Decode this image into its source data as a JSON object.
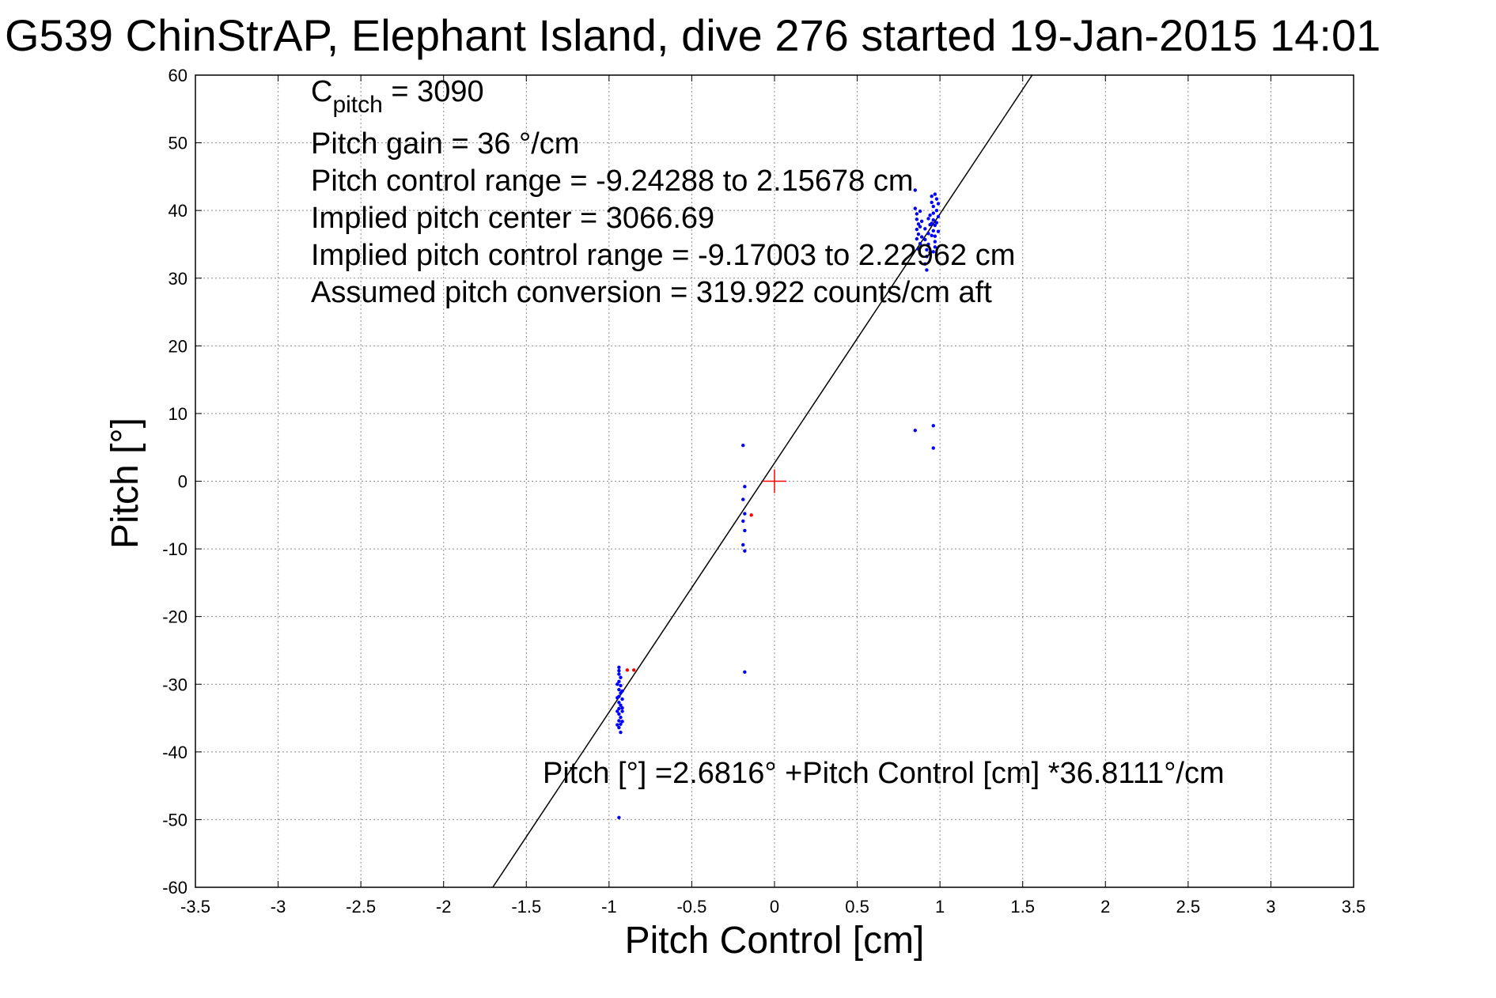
{
  "chart_data": {
    "type": "scatter",
    "title": "G539 ChinStrAP, Elephant Island, dive 276 started 19-Jan-2015 14:01",
    "xlabel": "Pitch Control [cm]",
    "ylabel": "Pitch [°]",
    "xlim": [
      -3.5,
      3.5
    ],
    "ylim": [
      -60,
      60
    ],
    "x_ticks": [
      -3.5,
      -3,
      -2.5,
      -2,
      -1.5,
      -1,
      -0.5,
      0,
      0.5,
      1,
      1.5,
      2,
      2.5,
      3,
      3.5
    ],
    "y_ticks": [
      -60,
      -50,
      -40,
      -30,
      -20,
      -10,
      0,
      10,
      20,
      30,
      40,
      50,
      60
    ],
    "grid": true,
    "annotations": {
      "c_pitch_base": "C",
      "c_pitch_sub": "pitch",
      "c_pitch_value": " = 3090",
      "pitch_gain": "Pitch gain = 36 °/cm",
      "control_range": "Pitch control range = -9.24288 to 2.15678 cm",
      "implied_center": "Implied pitch center = 3066.69",
      "implied_range": "Implied pitch control range = -9.17003 to 2.22962 cm",
      "conversion": "Assumed pitch conversion = 319.922 counts/cm aft",
      "fit_equation": "Pitch [°] =2.6816° +Pitch Control [cm] *36.8111°/cm"
    },
    "fit_line": {
      "intercept": 2.6816,
      "slope": 36.8111,
      "color": "#000000"
    },
    "center_marker": {
      "x": 0,
      "y": 0,
      "color": "#ff0000"
    },
    "series": [
      {
        "color": "#0000ff",
        "points": [
          [
            -0.94,
            -27.5
          ],
          [
            -0.94,
            -28.0
          ],
          [
            -0.94,
            -28.5
          ],
          [
            -0.93,
            -29.0
          ],
          [
            -0.94,
            -29.6
          ],
          [
            -0.93,
            -30.2
          ],
          [
            -0.94,
            -30.8
          ],
          [
            -0.93,
            -31.3
          ],
          [
            -0.94,
            -31.8
          ],
          [
            -0.92,
            -32.2
          ],
          [
            -0.94,
            -32.7
          ],
          [
            -0.93,
            -33.1
          ],
          [
            -0.94,
            -33.6
          ],
          [
            -0.92,
            -34.0
          ],
          [
            -0.94,
            -34.4
          ],
          [
            -0.93,
            -34.9
          ],
          [
            -0.94,
            -35.4
          ],
          [
            -0.93,
            -35.9
          ],
          [
            -0.94,
            -36.4
          ],
          [
            -0.93,
            -37.1
          ],
          [
            -0.95,
            -30.0
          ],
          [
            -0.95,
            -32.0
          ],
          [
            -0.95,
            -34.0
          ],
          [
            -0.95,
            -36.0
          ],
          [
            -0.92,
            -31.0
          ],
          [
            -0.92,
            -33.5
          ],
          [
            -0.92,
            -35.5
          ],
          [
            -0.94,
            -49.7
          ],
          [
            -0.19,
            5.3
          ],
          [
            -0.18,
            -0.8
          ],
          [
            -0.19,
            -2.7
          ],
          [
            -0.18,
            -4.8
          ],
          [
            -0.19,
            -5.9
          ],
          [
            -0.18,
            -7.3
          ],
          [
            -0.19,
            -9.4
          ],
          [
            -0.18,
            -10.3
          ],
          [
            -0.18,
            -28.2
          ],
          [
            0.85,
            7.5
          ],
          [
            0.96,
            8.2
          ],
          [
            0.96,
            4.9
          ],
          [
            0.85,
            43.0
          ],
          [
            0.85,
            40.3
          ],
          [
            0.86,
            39.5
          ],
          [
            0.86,
            38.7
          ],
          [
            0.87,
            38.0
          ],
          [
            0.86,
            37.2
          ],
          [
            0.87,
            36.5
          ],
          [
            0.86,
            35.8
          ],
          [
            0.88,
            35.1
          ],
          [
            0.87,
            34.3
          ],
          [
            0.88,
            39.9
          ],
          [
            0.88,
            37.6
          ],
          [
            0.89,
            36.1
          ],
          [
            0.89,
            38.4
          ],
          [
            0.91,
            37.3
          ],
          [
            0.91,
            35.7
          ],
          [
            0.92,
            34.2
          ],
          [
            0.92,
            33.2
          ],
          [
            0.91,
            32.1
          ],
          [
            0.92,
            31.2
          ],
          [
            0.93,
            38.8
          ],
          [
            0.93,
            36.6
          ],
          [
            0.93,
            35.0
          ],
          [
            0.94,
            33.8
          ],
          [
            0.94,
            37.9
          ],
          [
            0.94,
            39.3
          ],
          [
            0.95,
            42.1
          ],
          [
            0.95,
            41.2
          ],
          [
            0.96,
            40.6
          ],
          [
            0.96,
            39.6
          ],
          [
            0.96,
            38.6
          ],
          [
            0.97,
            37.8
          ],
          [
            0.96,
            37.0
          ],
          [
            0.97,
            36.2
          ],
          [
            0.97,
            35.4
          ],
          [
            0.98,
            41.7
          ],
          [
            0.98,
            40.0
          ],
          [
            0.98,
            38.2
          ],
          [
            0.99,
            39.1
          ],
          [
            0.99,
            41.0
          ],
          [
            0.99,
            36.9
          ],
          [
            0.97,
            42.4
          ],
          [
            0.95,
            36.3
          ],
          [
            0.95,
            38.1
          ],
          [
            0.97,
            34.6
          ],
          [
            0.96,
            33.9
          ]
        ]
      },
      {
        "color": "#ff0000",
        "points": [
          [
            -0.89,
            -27.9
          ],
          [
            -0.85,
            -27.9
          ],
          [
            -0.14,
            -5.0
          ]
        ]
      }
    ]
  }
}
